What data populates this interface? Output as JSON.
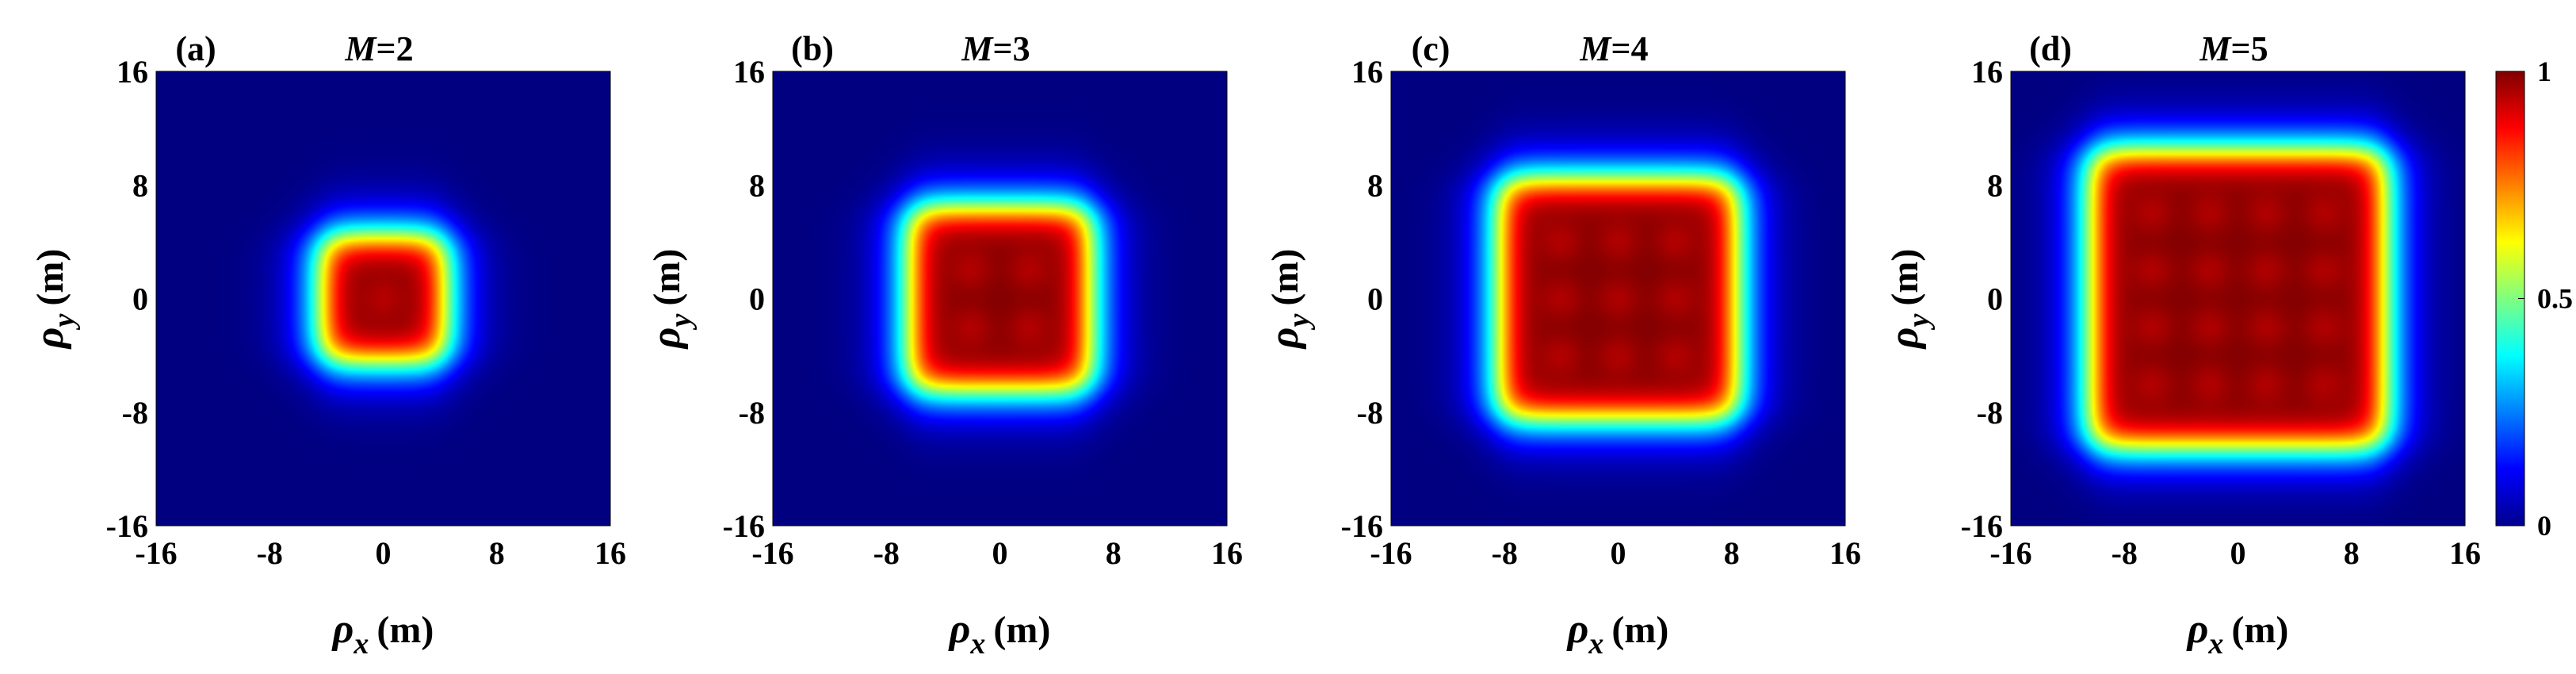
{
  "chart_data": [
    {
      "type": "heatmap",
      "panel_label": "(a)",
      "title_italic": "M",
      "title_rest": "=2",
      "M": 2,
      "xlabel_symbol": "ρ",
      "xlabel_sub": "x",
      "xlabel_unit": "(m)",
      "ylabel_symbol": "ρ",
      "ylabel_sub": "y",
      "ylabel_unit": "(m)",
      "xlim": [
        -16,
        16
      ],
      "ylim": [
        -16,
        16
      ],
      "xticks": [
        "-16",
        "-8",
        "0",
        "8",
        "16"
      ],
      "yticks": [
        "16",
        "8",
        "0",
        "-8",
        "-16"
      ],
      "half_width": 4.0,
      "grid": false
    },
    {
      "type": "heatmap",
      "panel_label": "(b)",
      "title_italic": "M",
      "title_rest": "=3",
      "M": 3,
      "xlabel_symbol": "ρ",
      "xlabel_sub": "x",
      "xlabel_unit": "(m)",
      "ylabel_symbol": "ρ",
      "ylabel_sub": "y",
      "ylabel_unit": "(m)",
      "xlim": [
        -16,
        16
      ],
      "ylim": [
        -16,
        16
      ],
      "xticks": [
        "-16",
        "-8",
        "0",
        "8",
        "16"
      ],
      "yticks": [
        "16",
        "8",
        "0",
        "-8",
        "-16"
      ],
      "half_width": 6.0,
      "grid": false
    },
    {
      "type": "heatmap",
      "panel_label": "(c)",
      "title_italic": "M",
      "title_rest": "=4",
      "M": 4,
      "xlabel_symbol": "ρ",
      "xlabel_sub": "x",
      "xlabel_unit": "(m)",
      "ylabel_symbol": "ρ",
      "ylabel_sub": "y",
      "ylabel_unit": "(m)",
      "xlim": [
        -16,
        16
      ],
      "ylim": [
        -16,
        16
      ],
      "xticks": [
        "-16",
        "-8",
        "0",
        "8",
        "16"
      ],
      "yticks": [
        "16",
        "8",
        "0",
        "-8",
        "-16"
      ],
      "half_width": 8.0,
      "grid": false
    },
    {
      "type": "heatmap",
      "panel_label": "(d)",
      "title_italic": "M",
      "title_rest": "=5",
      "M": 5,
      "xlabel_symbol": "ρ",
      "xlabel_sub": "x",
      "xlabel_unit": "(m)",
      "ylabel_symbol": "ρ",
      "ylabel_sub": "y",
      "ylabel_unit": "(m)",
      "xlim": [
        -16,
        16
      ],
      "ylim": [
        -16,
        16
      ],
      "xticks": [
        "-16",
        "-8",
        "0",
        "8",
        "16"
      ],
      "yticks": [
        "16",
        "8",
        "0",
        "-8",
        "-16"
      ],
      "half_width": 10.0,
      "grid": false
    }
  ],
  "colorbar": {
    "colormap": "jet",
    "range": [
      0,
      1
    ],
    "ticks": [
      "1",
      "0.5",
      "0"
    ],
    "placement": "right"
  }
}
